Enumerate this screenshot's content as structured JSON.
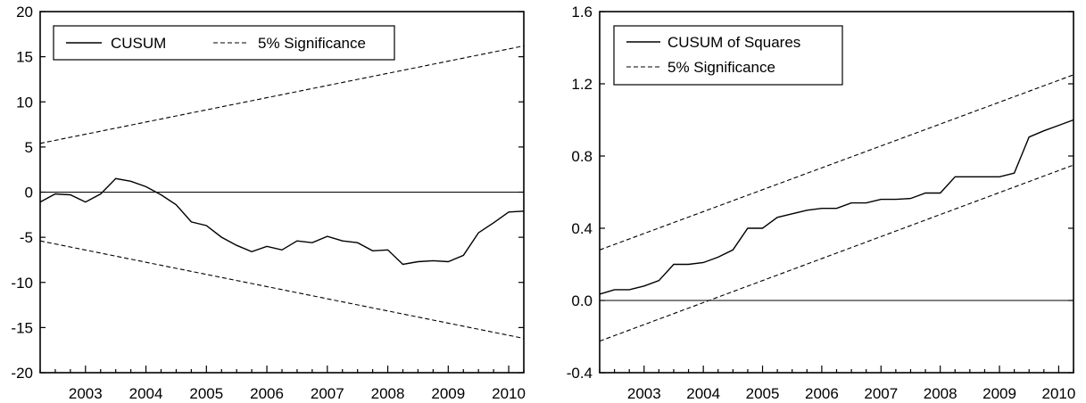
{
  "chart_data": [
    {
      "type": "line",
      "xlim": [
        2002.25,
        2010.25
      ],
      "ylim": [
        -20,
        20
      ],
      "y_ticks": [
        20,
        15,
        10,
        5,
        0,
        -5,
        -10,
        -15,
        -20
      ],
      "y_tick_labels": [
        "20",
        "15",
        "10",
        "5",
        "0",
        "-5",
        "-10",
        "-15",
        "-20"
      ],
      "x_tick_labels": [
        "2003",
        "2004",
        "2005",
        "2006",
        "2007",
        "2008",
        "2009",
        "2010"
      ],
      "zero_line": 0,
      "legend": {
        "placement": "top-left",
        "layout": "horizontal"
      },
      "grid": false,
      "series": [
        {
          "name": "CUSUM",
          "style": "solid",
          "x": [
            2002.25,
            2002.5,
            2002.75,
            2003.0,
            2003.25,
            2003.5,
            2003.75,
            2004.0,
            2004.25,
            2004.5,
            2004.75,
            2005.0,
            2005.25,
            2005.5,
            2005.75,
            2006.0,
            2006.25,
            2006.5,
            2006.75,
            2007.0,
            2007.25,
            2007.5,
            2007.75,
            2008.0,
            2008.25,
            2008.5,
            2008.75,
            2009.0,
            2009.25,
            2009.5,
            2009.75,
            2010.0,
            2010.25
          ],
          "y": [
            -1.1,
            -0.2,
            -0.3,
            -1.1,
            -0.2,
            1.5,
            1.2,
            0.6,
            -0.3,
            -1.4,
            -3.3,
            -3.7,
            -5.0,
            -5.9,
            -6.6,
            -6.0,
            -6.4,
            -5.4,
            -5.6,
            -4.9,
            -5.4,
            -5.6,
            -6.5,
            -6.4,
            -8.0,
            -7.7,
            -7.6,
            -7.7,
            -7.0,
            -4.5,
            -3.4,
            -2.2,
            -1.0
          ],
          "y_at_axis_end": -2.1
        },
        {
          "name": "5% Significance",
          "style": "dashed",
          "x": [
            2002.25,
            2010.25
          ],
          "y": [
            5.4,
            16.2
          ]
        },
        {
          "name": "",
          "style": "dashed",
          "x": [
            2002.25,
            2010.25
          ],
          "y": [
            -5.4,
            -16.2
          ]
        }
      ]
    },
    {
      "type": "line",
      "xlim": [
        2002.25,
        2010.25
      ],
      "ylim": [
        -0.4,
        1.6
      ],
      "y_ticks": [
        1.6,
        1.2,
        0.8,
        0.4,
        0.0,
        -0.4
      ],
      "y_tick_labels": [
        "1.6",
        "1.2",
        "0.8",
        "0.4",
        "0.0",
        "-0.4"
      ],
      "x_tick_labels": [
        "2003",
        "2004",
        "2005",
        "2006",
        "2007",
        "2008",
        "2009",
        "2010"
      ],
      "zero_line": 0,
      "legend": {
        "placement": "top-left",
        "layout": "vertical"
      },
      "grid": false,
      "series": [
        {
          "name": "CUSUM of Squares",
          "style": "solid",
          "x": [
            2002.25,
            2002.5,
            2002.75,
            2003.0,
            2003.25,
            2003.5,
            2003.75,
            2004.0,
            2004.25,
            2004.5,
            2004.75,
            2005.0,
            2005.25,
            2005.5,
            2005.75,
            2006.0,
            2006.25,
            2006.5,
            2006.75,
            2007.0,
            2007.25,
            2007.5,
            2007.75,
            2008.0,
            2008.25,
            2008.5,
            2008.75,
            2009.0,
            2009.25,
            2009.5,
            2009.75,
            2010.0,
            2010.25
          ],
          "y": [
            0.035,
            0.06,
            0.06,
            0.08,
            0.11,
            0.2,
            0.2,
            0.21,
            0.24,
            0.28,
            0.4,
            0.4,
            0.46,
            0.48,
            0.5,
            0.51,
            0.51,
            0.54,
            0.54,
            0.56,
            0.56,
            0.565,
            0.595,
            0.595,
            0.685,
            0.685,
            0.685,
            0.685,
            0.705,
            0.905,
            0.94,
            0.97,
            1.0
          ]
        },
        {
          "name": "5% Significance",
          "style": "dashed",
          "x": [
            2002.25,
            2010.25
          ],
          "y": [
            0.28,
            1.25
          ]
        },
        {
          "name": "",
          "style": "dashed",
          "x": [
            2002.25,
            2010.25
          ],
          "y": [
            -0.225,
            0.75
          ]
        }
      ]
    }
  ]
}
